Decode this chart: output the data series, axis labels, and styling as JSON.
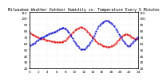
{
  "title": "Milwaukee Weather Outdoor Humidity vs. Temperature Every 5 Minutes",
  "bg_color": "#ffffff",
  "line1_color": "#dd0000",
  "line2_color": "#0000cc",
  "ylim_left": [
    20,
    110
  ],
  "ylim_right": [
    20,
    110
  ],
  "xlim": [
    0,
    288
  ],
  "x": [
    0,
    3,
    6,
    9,
    12,
    15,
    18,
    21,
    24,
    27,
    30,
    33,
    36,
    39,
    42,
    45,
    48,
    51,
    54,
    57,
    60,
    63,
    66,
    69,
    72,
    75,
    78,
    81,
    84,
    87,
    90,
    93,
    96,
    99,
    102,
    105,
    108,
    111,
    114,
    117,
    120,
    123,
    126,
    129,
    132,
    135,
    138,
    141,
    144,
    147,
    150,
    153,
    156,
    159,
    162,
    165,
    168,
    171,
    174,
    177,
    180,
    183,
    186,
    189,
    192,
    195,
    198,
    201,
    204,
    207,
    210,
    213,
    216,
    219,
    222,
    225,
    228,
    231,
    234,
    237,
    240,
    243,
    246,
    249,
    252,
    255,
    258,
    261,
    264,
    267,
    270,
    273,
    276,
    279,
    282,
    285,
    288
  ],
  "temp": [
    78,
    76,
    75,
    74,
    73,
    72,
    71,
    70,
    69,
    68,
    68,
    67,
    67,
    67,
    66,
    65,
    65,
    64,
    64,
    63,
    63,
    63,
    62,
    62,
    62,
    62,
    62,
    62,
    62,
    62,
    63,
    64,
    65,
    67,
    69,
    71,
    73,
    75,
    77,
    79,
    81,
    82,
    83,
    84,
    85,
    86,
    86,
    85,
    84,
    83,
    81,
    79,
    77,
    75,
    73,
    71,
    69,
    67,
    65,
    63,
    61,
    60,
    59,
    58,
    57,
    56,
    55,
    55,
    54,
    54,
    54,
    54,
    55,
    56,
    57,
    58,
    60,
    62,
    64,
    66,
    68,
    70,
    72,
    73,
    74,
    75,
    75,
    74,
    73,
    72,
    70,
    69,
    68,
    67,
    67,
    67,
    67
  ],
  "humidity": [
    55,
    57,
    58,
    59,
    60,
    61,
    63,
    64,
    66,
    67,
    68,
    69,
    70,
    71,
    72,
    73,
    74,
    75,
    76,
    76,
    77,
    77,
    78,
    79,
    80,
    81,
    82,
    83,
    84,
    85,
    85,
    84,
    83,
    81,
    79,
    77,
    74,
    71,
    68,
    65,
    62,
    59,
    57,
    55,
    53,
    51,
    50,
    50,
    50,
    51,
    53,
    55,
    57,
    59,
    62,
    65,
    68,
    72,
    76,
    80,
    84,
    87,
    89,
    91,
    93,
    94,
    95,
    96,
    96,
    96,
    95,
    94,
    93,
    91,
    89,
    87,
    84,
    81,
    78,
    75,
    72,
    69,
    66,
    63,
    61,
    59,
    57,
    56,
    56,
    57,
    59,
    61,
    63,
    65,
    67,
    69,
    70
  ],
  "title_fontsize": 3.5,
  "tick_fontsize": 3.0,
  "linewidth": 0.7,
  "markersize": 0.9,
  "grid_color": "#cccccc",
  "right_yticks": [
    20,
    30,
    40,
    50,
    60,
    70,
    80,
    90,
    100,
    110
  ],
  "left_yticks": [
    20,
    30,
    40,
    50,
    60,
    70,
    80,
    90,
    100,
    110
  ],
  "xtick_step": 24
}
